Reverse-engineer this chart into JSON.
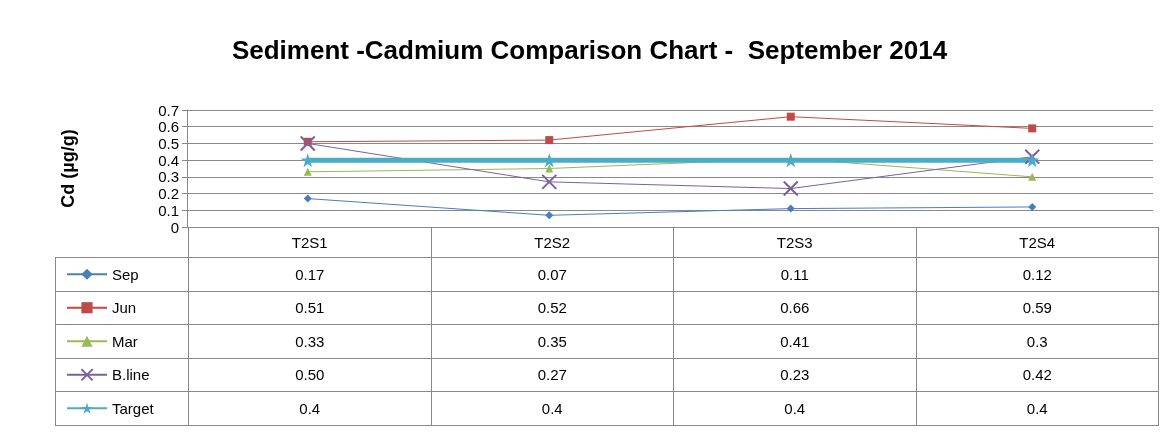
{
  "chart_data": {
    "type": "line",
    "title": "Sediment -Cadmium Comparison Chart -  September 2014",
    "ylabel": "Cd (µg/g)",
    "categories": [
      "T2S1",
      "T2S2",
      "T2S3",
      "T2S4"
    ],
    "series": [
      {
        "name": "Sep",
        "color": "#4a7ebb",
        "marker": "diamond",
        "values": [
          0.17,
          0.07,
          0.11,
          0.12
        ],
        "value_labels": [
          "0.17",
          "0.07",
          "0.11",
          "0.12"
        ]
      },
      {
        "name": "Jun",
        "color": "#be4b48",
        "marker": "square",
        "values": [
          0.51,
          0.52,
          0.66,
          0.59
        ],
        "value_labels": [
          "0.51",
          "0.52",
          "0.66",
          "0.59"
        ]
      },
      {
        "name": "Mar",
        "color": "#98b954",
        "marker": "triangle",
        "values": [
          0.33,
          0.35,
          0.41,
          0.3
        ],
        "value_labels": [
          "0.33",
          "0.35",
          "0.41",
          "0.3"
        ]
      },
      {
        "name": "B.line",
        "color": "#7d60a0",
        "marker": "cross",
        "values": [
          0.5,
          0.27,
          0.23,
          0.42
        ],
        "value_labels": [
          "0.50",
          "0.27",
          "0.23",
          "0.42"
        ]
      },
      {
        "name": "Target",
        "color": "#4bacc6",
        "marker": "star",
        "values": [
          0.4,
          0.4,
          0.4,
          0.4
        ],
        "value_labels": [
          "0.4",
          "0.4",
          "0.4",
          "0.4"
        ]
      }
    ],
    "ylim": [
      0,
      0.7
    ],
    "yticks": [
      0,
      0.1,
      0.2,
      0.3,
      0.4,
      0.5,
      0.6,
      0.7
    ],
    "grid": "y",
    "legend": "bottom left",
    "line_style": "solid"
  }
}
